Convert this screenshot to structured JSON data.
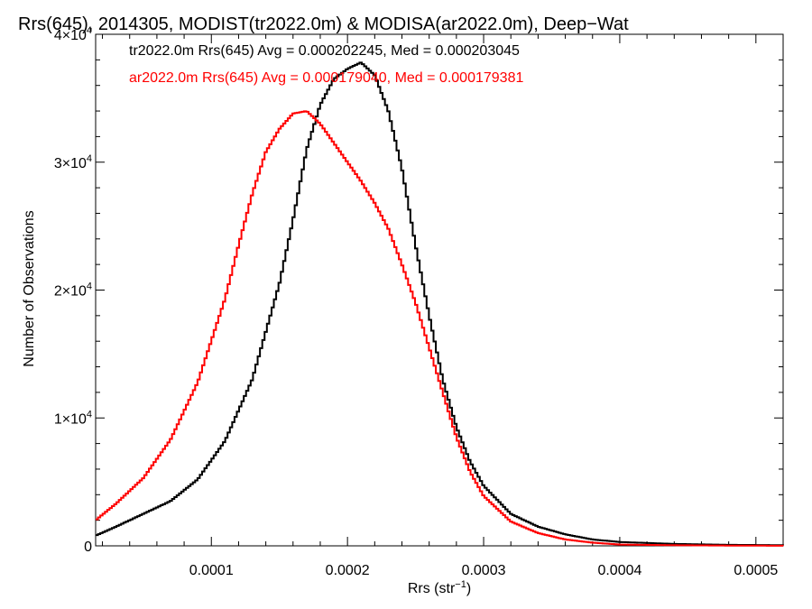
{
  "chart_data": {
    "type": "line",
    "title": "Rrs(645), 2014305, MODIST(tr2022.0m) & MODISA(ar2022.0m), Deep−Wat",
    "xlabel": "Rrs (str",
    "xlabel_sup": "−1",
    "xlabel_close": ")",
    "ylabel": "Number of Observations",
    "xlim": [
      1.5e-05,
      0.00052
    ],
    "ylim": [
      0,
      40000
    ],
    "x_ticks": [
      {
        "value": 0.0001,
        "label": "0.0001"
      },
      {
        "value": 0.0002,
        "label": "0.0002"
      },
      {
        "value": 0.0003,
        "label": "0.0003"
      },
      {
        "value": 0.0004,
        "label": "0.0004"
      },
      {
        "value": 0.0005,
        "label": "0.0005"
      }
    ],
    "y_ticks": [
      {
        "value": 0,
        "mant": "0",
        "exp": ""
      },
      {
        "value": 10000,
        "mant": "1×10",
        "exp": "4"
      },
      {
        "value": 20000,
        "mant": "2×10",
        "exp": "4"
      },
      {
        "value": 30000,
        "mant": "3×10",
        "exp": "4"
      },
      {
        "value": 40000,
        "mant": "4×10",
        "exp": "4"
      }
    ],
    "grid": false,
    "series": [
      {
        "name": "tr2022.0m Rrs(645) Avg = 0.000202245, Med = 0.000203045",
        "color": "#000000",
        "points": [
          [
            1.5e-05,
            800
          ],
          [
            3e-05,
            1500
          ],
          [
            5e-05,
            2500
          ],
          [
            7e-05,
            3500
          ],
          [
            9e-05,
            5200
          ],
          [
            0.00011,
            8200
          ],
          [
            0.00013,
            13000
          ],
          [
            0.00015,
            20500
          ],
          [
            0.00016,
            25500
          ],
          [
            0.00017,
            31000
          ],
          [
            0.00018,
            34500
          ],
          [
            0.00019,
            36500
          ],
          [
            0.0002,
            37300
          ],
          [
            0.00021,
            37800
          ],
          [
            0.00022,
            36800
          ],
          [
            0.00023,
            34000
          ],
          [
            0.00024,
            29500
          ],
          [
            0.00025,
            23500
          ],
          [
            0.00026,
            18000
          ],
          [
            0.00027,
            13000
          ],
          [
            0.00028,
            9300
          ],
          [
            0.00029,
            6600
          ],
          [
            0.0003,
            4700
          ],
          [
            0.00032,
            2500
          ],
          [
            0.00034,
            1500
          ],
          [
            0.00036,
            900
          ],
          [
            0.00038,
            500
          ],
          [
            0.0004,
            300
          ],
          [
            0.00044,
            150
          ],
          [
            0.00048,
            80
          ],
          [
            0.00052,
            50
          ]
        ]
      },
      {
        "name": "ar2022.0m Rrs(645) Avg = 0.000179040, Med = 0.000179381",
        "color": "#ff0000",
        "points": [
          [
            1.5e-05,
            2000
          ],
          [
            3e-05,
            3300
          ],
          [
            5e-05,
            5300
          ],
          [
            7e-05,
            8300
          ],
          [
            9e-05,
            12800
          ],
          [
            0.00011,
            19300
          ],
          [
            0.00012,
            23500
          ],
          [
            0.00013,
            27500
          ],
          [
            0.00014,
            30800
          ],
          [
            0.00015,
            32600
          ],
          [
            0.00016,
            33800
          ],
          [
            0.00017,
            34000
          ],
          [
            0.00018,
            33000
          ],
          [
            0.00019,
            31500
          ],
          [
            0.0002,
            30000
          ],
          [
            0.00021,
            28500
          ],
          [
            0.00022,
            26800
          ],
          [
            0.00023,
            24800
          ],
          [
            0.00024,
            22000
          ],
          [
            0.00025,
            19000
          ],
          [
            0.00026,
            15500
          ],
          [
            0.00027,
            12000
          ],
          [
            0.00028,
            8500
          ],
          [
            0.00029,
            5800
          ],
          [
            0.0003,
            3900
          ],
          [
            0.00032,
            1900
          ],
          [
            0.00034,
            1000
          ],
          [
            0.00036,
            500
          ],
          [
            0.00038,
            250
          ],
          [
            0.0004,
            100
          ],
          [
            0.00044,
            50
          ],
          [
            0.00048,
            20
          ],
          [
            0.00052,
            10
          ]
        ]
      }
    ]
  }
}
